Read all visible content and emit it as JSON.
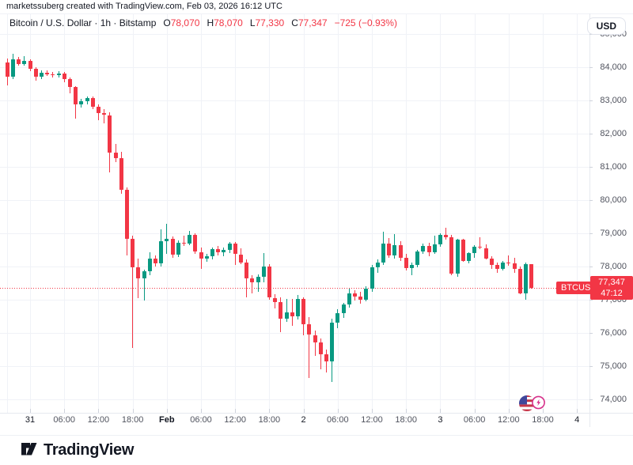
{
  "attribution": "marketssuberg created with TradingView.com, Feb 03, 2026 16:12 UTC",
  "legend": {
    "title": "Bitcoin / U.S. Dollar · 1h · Bitstamp",
    "ohlc": [
      {
        "k": "O",
        "v": "78,070"
      },
      {
        "k": "H",
        "v": "78,070"
      },
      {
        "k": "L",
        "v": "77,330"
      },
      {
        "k": "C",
        "v": "77,347"
      }
    ],
    "change": "−725 (−0.93%)"
  },
  "currency_button": "USD",
  "price_line": {
    "value": 77347,
    "price_label": "77,347",
    "countdown": "47:12",
    "symbol_label": "BTCUSD",
    "color": "#F23645"
  },
  "price_axis": {
    "labels": [
      {
        "text": "85,000",
        "value": 85000
      },
      {
        "text": "84,000",
        "value": 84000
      },
      {
        "text": "83,000",
        "value": 83000
      },
      {
        "text": "82,000",
        "value": 82000
      },
      {
        "text": "81,000",
        "value": 81000
      },
      {
        "text": "80,000",
        "value": 80000
      },
      {
        "text": "79,000",
        "value": 79000
      },
      {
        "text": "78,000",
        "value": 78000
      },
      {
        "text": "77,000",
        "value": 77000
      },
      {
        "text": "76,000",
        "value": 76000
      },
      {
        "text": "75,000",
        "value": 75000
      },
      {
        "text": "74,000",
        "value": 74000
      }
    ]
  },
  "time_axis": {
    "ticks": [
      {
        "label": "31",
        "hour": 0,
        "day": true,
        "month": false
      },
      {
        "label": "06:00",
        "hour": 6,
        "day": false,
        "month": false
      },
      {
        "label": "12:00",
        "hour": 12,
        "day": false,
        "month": false
      },
      {
        "label": "18:00",
        "hour": 18,
        "day": false,
        "month": false
      },
      {
        "label": "Feb",
        "hour": 24,
        "day": false,
        "month": true
      },
      {
        "label": "06:00",
        "hour": 30,
        "day": false,
        "month": false
      },
      {
        "label": "12:00",
        "hour": 36,
        "day": false,
        "month": false
      },
      {
        "label": "18:00",
        "hour": 42,
        "day": false,
        "month": false
      },
      {
        "label": "2",
        "hour": 48,
        "day": true,
        "month": false
      },
      {
        "label": "06:00",
        "hour": 54,
        "day": false,
        "month": false
      },
      {
        "label": "12:00",
        "hour": 60,
        "day": false,
        "month": false
      },
      {
        "label": "18:00",
        "hour": 66,
        "day": false,
        "month": false
      },
      {
        "label": "3",
        "hour": 72,
        "day": true,
        "month": false
      },
      {
        "label": "06:00",
        "hour": 78,
        "day": false,
        "month": false
      },
      {
        "label": "12:00",
        "hour": 84,
        "day": false,
        "month": false
      },
      {
        "label": "18:00",
        "hour": 90,
        "day": false,
        "month": false
      },
      {
        "label": "4",
        "hour": 96,
        "day": true,
        "month": false
      }
    ]
  },
  "event_icon": {
    "name": "us-economic-event",
    "flag": "US"
  },
  "footer": {
    "logo_text": "TradingView"
  },
  "colors": {
    "up": "#089981",
    "down": "#F23645",
    "accent_red": "#F23645",
    "grid": "#F0F2F7",
    "axis_text": "#50535E",
    "text": "#131722",
    "border": "#E0E3EB"
  },
  "chart_data": {
    "type": "candlestick",
    "symbol": "BTCUSD",
    "title": "Bitcoin / U.S. Dollar",
    "interval": "1h",
    "exchange": "Bitstamp",
    "timezone": "UTC",
    "last": {
      "open": 78070,
      "high": 78070,
      "low": 77330,
      "close": 77347,
      "change": -725,
      "change_pct": -0.93
    },
    "y_axis": {
      "visible_min": 74000,
      "visible_max": 85000,
      "grid_step": 1000,
      "currency": "USD"
    },
    "x_axis": {
      "start": "Jan 30 20:00",
      "end": "Feb 3 16:00",
      "step_hours": 1
    },
    "grid": true,
    "candles_format": [
      "time",
      "open",
      "high",
      "low",
      "close"
    ],
    "candles": [
      [
        "Jan 30 20:00",
        84150,
        84260,
        83450,
        83720
      ],
      [
        "Jan 30 21:00",
        83720,
        84400,
        83650,
        84230
      ],
      [
        "Jan 30 22:00",
        84230,
        84310,
        84040,
        84100
      ],
      [
        "Jan 30 23:00",
        84100,
        84330,
        84040,
        84180
      ],
      [
        "Jan 31 00:00",
        84180,
        84230,
        83880,
        83950
      ],
      [
        "Jan 31 01:00",
        83950,
        84010,
        83600,
        83720
      ],
      [
        "Jan 31 02:00",
        83720,
        83900,
        83650,
        83830
      ],
      [
        "Jan 31 03:00",
        83830,
        83910,
        83730,
        83790
      ],
      [
        "Jan 31 04:00",
        83790,
        83870,
        83700,
        83760
      ],
      [
        "Jan 31 05:00",
        83760,
        83880,
        83690,
        83800
      ],
      [
        "Jan 31 06:00",
        83800,
        83850,
        83540,
        83640
      ],
      [
        "Jan 31 07:00",
        83640,
        83690,
        83220,
        83400
      ],
      [
        "Jan 31 08:00",
        83400,
        83440,
        82450,
        82890
      ],
      [
        "Jan 31 09:00",
        82890,
        83060,
        82780,
        82970
      ],
      [
        "Jan 31 10:00",
        82970,
        83130,
        82890,
        83070
      ],
      [
        "Jan 31 11:00",
        83070,
        83110,
        82740,
        82810
      ],
      [
        "Jan 31 12:00",
        82810,
        82890,
        82410,
        82610
      ],
      [
        "Jan 31 13:00",
        82610,
        82730,
        82300,
        82560
      ],
      [
        "Jan 31 14:00",
        82560,
        82650,
        80830,
        81420
      ],
      [
        "Jan 31 15:00",
        81420,
        81700,
        81140,
        81260
      ],
      [
        "Jan 31 16:00",
        81260,
        81450,
        80190,
        80310
      ],
      [
        "Jan 31 17:00",
        80310,
        80380,
        78330,
        78840
      ],
      [
        "Jan 31 18:00",
        78840,
        78930,
        75550,
        77970
      ],
      [
        "Jan 31 19:00",
        77970,
        78230,
        77050,
        77650
      ],
      [
        "Jan 31 20:00",
        77650,
        77900,
        76980,
        77860
      ],
      [
        "Jan 31 21:00",
        77860,
        78440,
        77740,
        78240
      ],
      [
        "Jan 31 22:00",
        78240,
        78340,
        78010,
        78090
      ],
      [
        "Jan 31 23:00",
        78090,
        79120,
        78000,
        78760
      ],
      [
        "Feb 1 00:00",
        78760,
        79290,
        78390,
        78840
      ],
      [
        "Feb 1 01:00",
        78840,
        78910,
        78250,
        78360
      ],
      [
        "Feb 1 02:00",
        78360,
        78790,
        78280,
        78720
      ],
      [
        "Feb 1 03:00",
        78720,
        78930,
        78610,
        78680
      ],
      [
        "Feb 1 04:00",
        78680,
        79080,
        78630,
        78960
      ],
      [
        "Feb 1 05:00",
        78960,
        79010,
        78370,
        78440
      ],
      [
        "Feb 1 06:00",
        78440,
        78570,
        77930,
        78240
      ],
      [
        "Feb 1 07:00",
        78240,
        78390,
        78140,
        78320
      ],
      [
        "Feb 1 08:00",
        78320,
        78570,
        78220,
        78520
      ],
      [
        "Feb 1 09:00",
        78520,
        78630,
        78330,
        78430
      ],
      [
        "Feb 1 10:00",
        78430,
        78570,
        78300,
        78500
      ],
      [
        "Feb 1 11:00",
        78500,
        78730,
        78410,
        78690
      ],
      [
        "Feb 1 12:00",
        78690,
        78740,
        78050,
        78370
      ],
      [
        "Feb 1 13:00",
        78370,
        78560,
        78070,
        78130
      ],
      [
        "Feb 1 14:00",
        78130,
        78220,
        77060,
        77650
      ],
      [
        "Feb 1 15:00",
        77650,
        77740,
        77200,
        77530
      ],
      [
        "Feb 1 16:00",
        77530,
        77770,
        77240,
        77690
      ],
      [
        "Feb 1 17:00",
        77690,
        78410,
        77520,
        78010
      ],
      [
        "Feb 1 18:00",
        78010,
        78070,
        76990,
        77060
      ],
      [
        "Feb 1 19:00",
        77060,
        77170,
        76730,
        76940
      ],
      [
        "Feb 1 20:00",
        76940,
        77070,
        76020,
        76420
      ],
      [
        "Feb 1 21:00",
        76420,
        77020,
        76340,
        76630
      ],
      [
        "Feb 1 22:00",
        76630,
        77020,
        76220,
        76510
      ],
      [
        "Feb 1 23:00",
        76510,
        77140,
        76410,
        77020
      ],
      [
        "Feb 2 00:00",
        77020,
        77070,
        75940,
        76260
      ],
      [
        "Feb 2 01:00",
        76260,
        76470,
        74640,
        75940
      ],
      [
        "Feb 2 02:00",
        75940,
        76070,
        75310,
        75710
      ],
      [
        "Feb 2 03:00",
        75710,
        75840,
        74910,
        75350
      ],
      [
        "Feb 2 04:00",
        75350,
        75510,
        74820,
        75150
      ],
      [
        "Feb 2 05:00",
        75150,
        76430,
        74520,
        76300
      ],
      [
        "Feb 2 06:00",
        76300,
        76710,
        76140,
        76600
      ],
      [
        "Feb 2 07:00",
        76600,
        76910,
        76440,
        76860
      ],
      [
        "Feb 2 08:00",
        76860,
        77330,
        76770,
        77180
      ],
      [
        "Feb 2 09:00",
        77180,
        77290,
        76970,
        77100
      ],
      [
        "Feb 2 10:00",
        77100,
        77250,
        76890,
        77000
      ],
      [
        "Feb 2 11:00",
        77000,
        77410,
        76940,
        77330
      ],
      [
        "Feb 2 12:00",
        77330,
        78060,
        77250,
        77980
      ],
      [
        "Feb 2 13:00",
        77980,
        78210,
        77810,
        78120
      ],
      [
        "Feb 2 14:00",
        78120,
        79050,
        78050,
        78700
      ],
      [
        "Feb 2 15:00",
        78700,
        78860,
        78270,
        78330
      ],
      [
        "Feb 2 16:00",
        78330,
        78980,
        78240,
        78640
      ],
      [
        "Feb 2 17:00",
        78640,
        78760,
        78170,
        78260
      ],
      [
        "Feb 2 18:00",
        78260,
        78390,
        77890,
        77960
      ],
      [
        "Feb 2 19:00",
        77960,
        78130,
        77730,
        78040
      ],
      [
        "Feb 2 20:00",
        78040,
        78510,
        77970,
        78450
      ],
      [
        "Feb 2 21:00",
        78450,
        78690,
        78370,
        78610
      ],
      [
        "Feb 2 22:00",
        78610,
        78710,
        78320,
        78420
      ],
      [
        "Feb 2 23:00",
        78420,
        78930,
        78370,
        78660
      ],
      [
        "Feb 3 00:00",
        78660,
        79010,
        78590,
        78950
      ],
      [
        "Feb 3 01:00",
        78950,
        79160,
        78810,
        78880
      ],
      [
        "Feb 3 02:00",
        78880,
        78950,
        77730,
        77790
      ],
      [
        "Feb 3 03:00",
        77790,
        78830,
        77690,
        78800
      ],
      [
        "Feb 3 04:00",
        78800,
        78840,
        78130,
        78170
      ],
      [
        "Feb 3 05:00",
        78170,
        78430,
        78090,
        78400
      ],
      [
        "Feb 3 06:00",
        78400,
        78650,
        78270,
        78600
      ],
      [
        "Feb 3 07:00",
        78600,
        78890,
        78530,
        78560
      ],
      [
        "Feb 3 08:00",
        78560,
        78660,
        78220,
        78250
      ],
      [
        "Feb 3 09:00",
        78250,
        78310,
        77920,
        78050
      ],
      [
        "Feb 3 10:00",
        78050,
        78130,
        77800,
        77930
      ],
      [
        "Feb 3 11:00",
        77930,
        78170,
        77870,
        78130
      ],
      [
        "Feb 3 12:00",
        78130,
        78340,
        78030,
        78090
      ],
      [
        "Feb 3 13:00",
        78090,
        78260,
        77800,
        77930
      ],
      [
        "Feb 3 14:00",
        77930,
        77990,
        77160,
        77190
      ],
      [
        "Feb 3 15:00",
        77190,
        78130,
        77000,
        78070
      ],
      [
        "Feb 3 16:00",
        78070,
        78070,
        77330,
        77347
      ]
    ]
  }
}
